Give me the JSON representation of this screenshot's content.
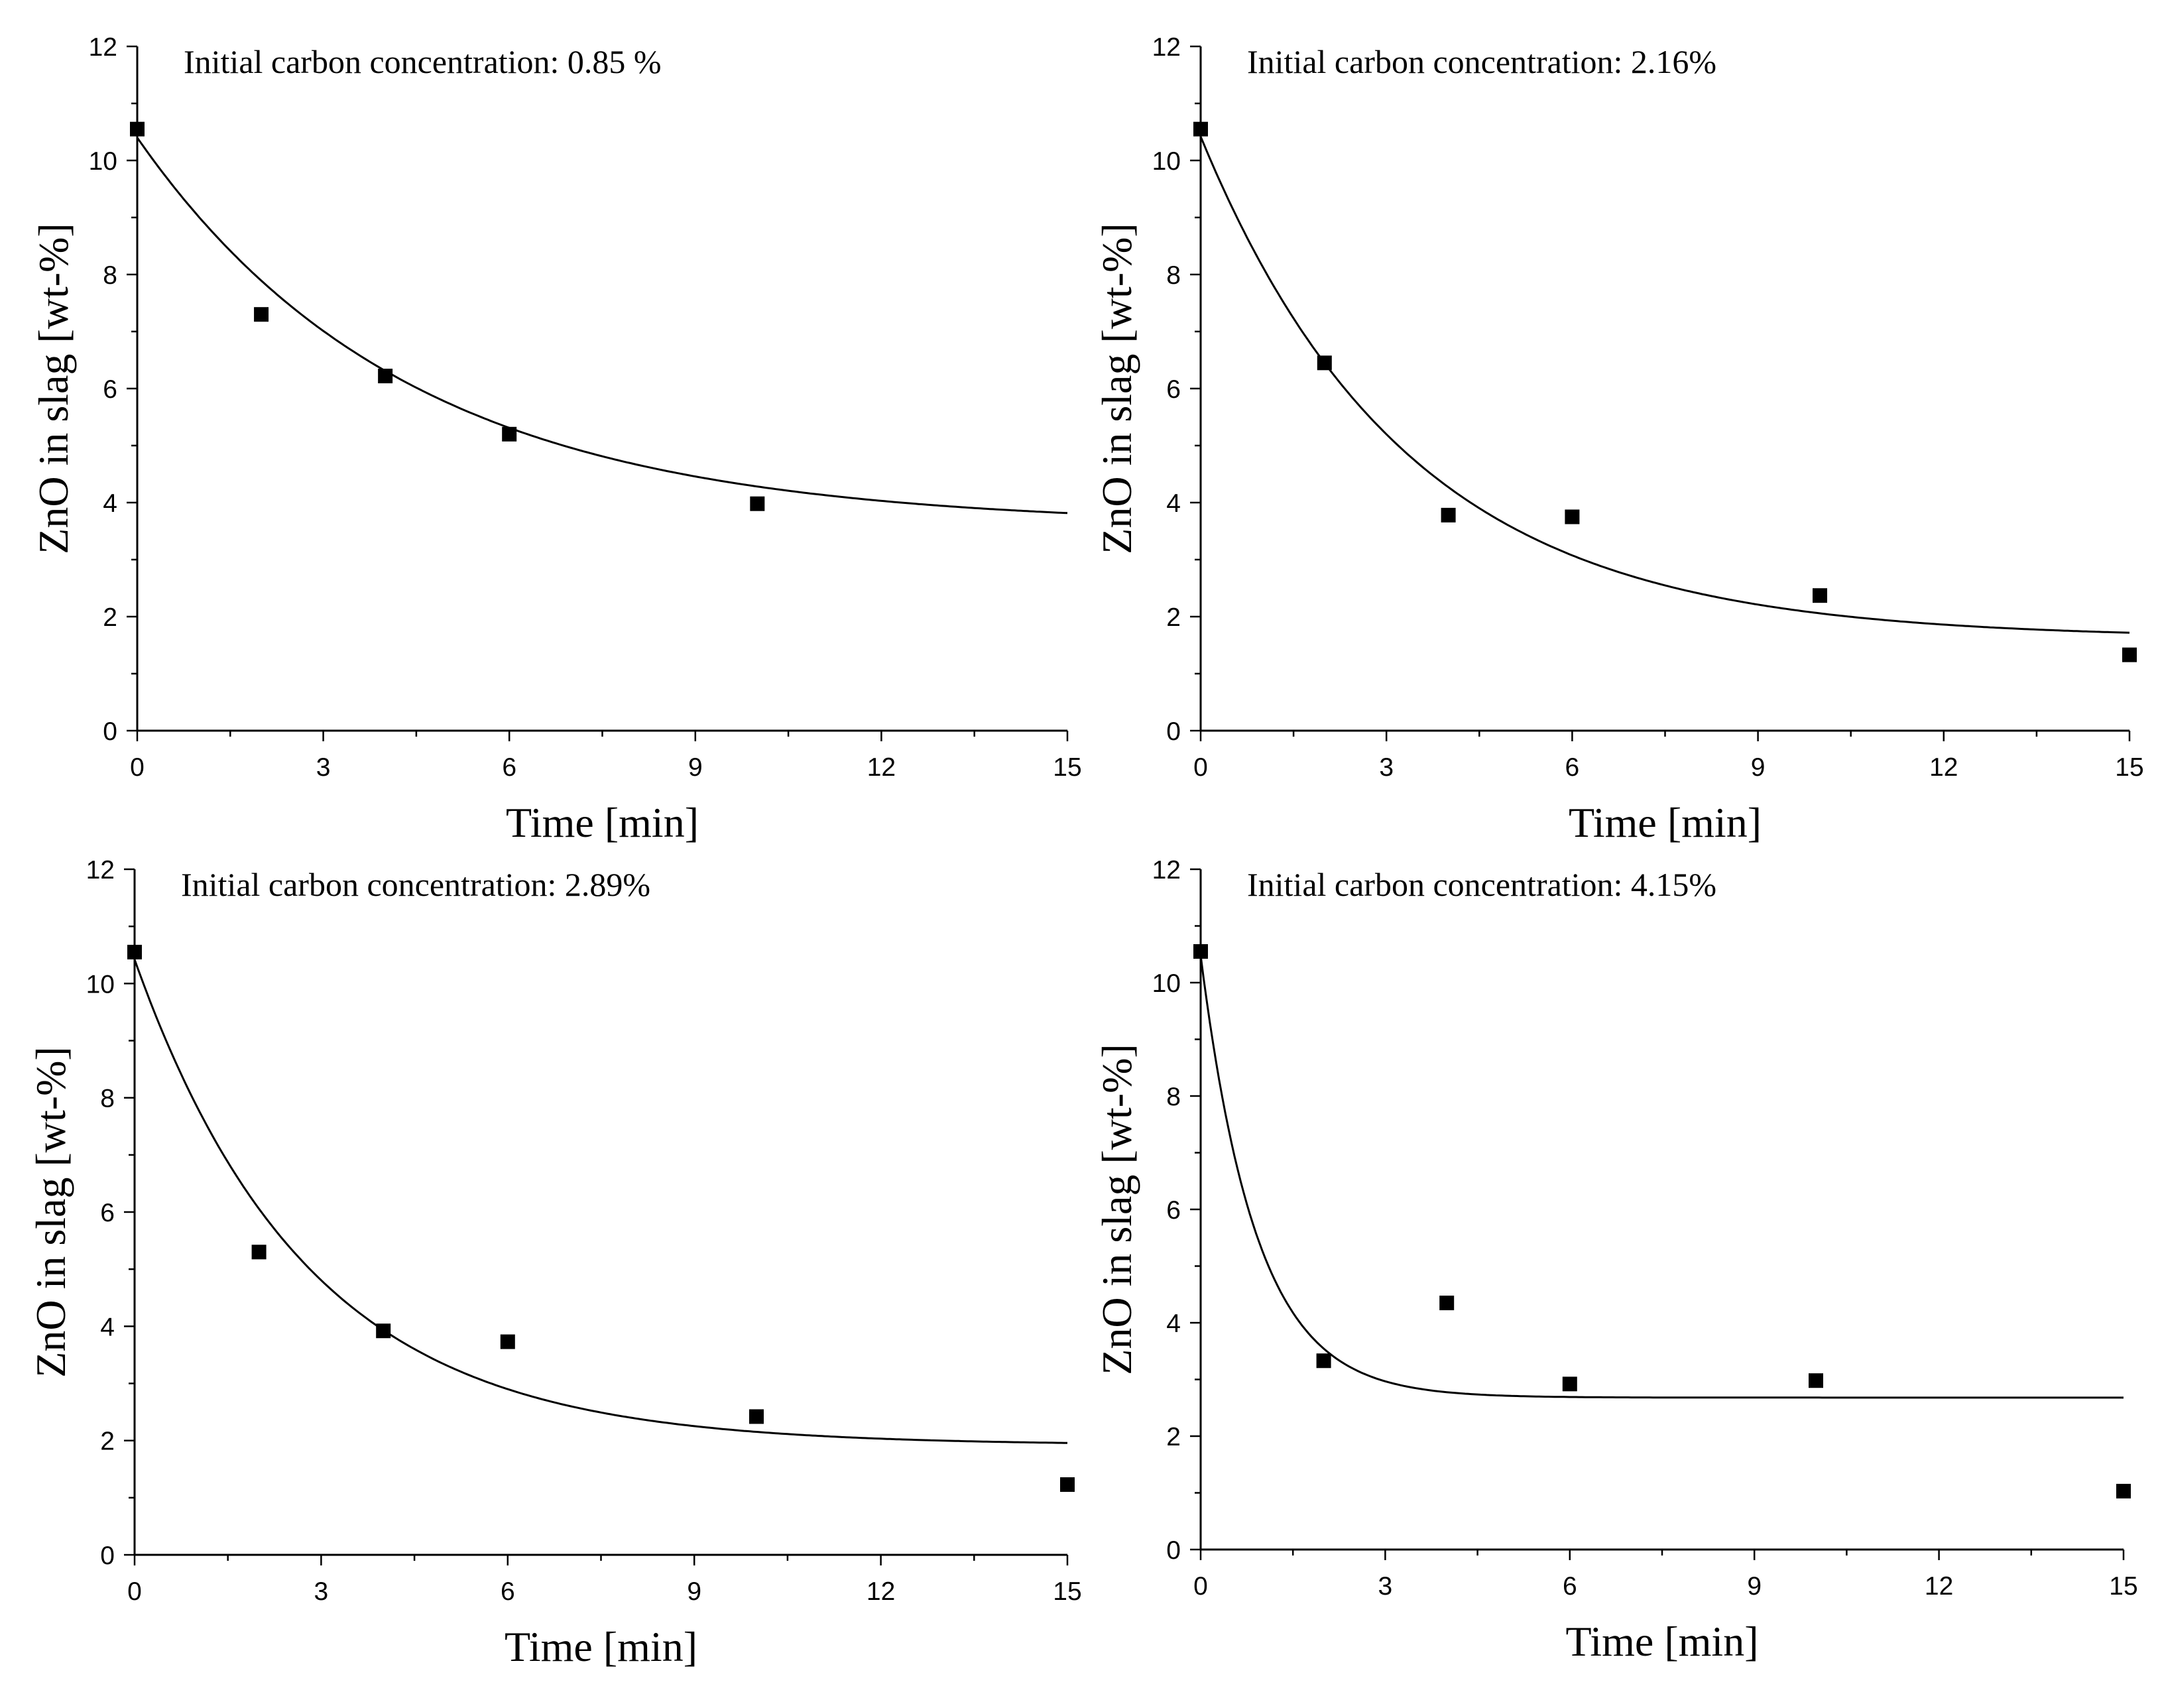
{
  "chart_data": [
    {
      "type": "scatter",
      "title": "Initial carbon concentration: 0.85 %",
      "xlabel": "Time [min]",
      "ylabel": "ZnO in slag [wt-%]",
      "xlim": [
        0,
        15
      ],
      "ylim": [
        0,
        12
      ],
      "xticks": [
        "0",
        "3",
        "6",
        "9",
        "12",
        "15"
      ],
      "yticks": [
        "0",
        "2",
        "4",
        "6",
        "8",
        "10",
        "12"
      ],
      "points": {
        "x": [
          0,
          2,
          4,
          6,
          10
        ],
        "y": [
          10.55,
          7.3,
          6.22,
          5.2,
          3.98
        ]
      },
      "fit": {
        "c": 3.6,
        "a": 6.8,
        "k": 0.23
      }
    },
    {
      "type": "scatter",
      "title": "Initial carbon concentration: 2.16%",
      "xlabel": "Time [min]",
      "ylabel": "ZnO in slag [wt-%]",
      "xlim": [
        0,
        15
      ],
      "ylim": [
        0,
        12
      ],
      "xticks": [
        "0",
        "3",
        "6",
        "9",
        "12",
        "15"
      ],
      "yticks": [
        "0",
        "2",
        "4",
        "6",
        "8",
        "10",
        "12"
      ],
      "points": {
        "x": [
          0,
          2,
          4,
          6,
          10,
          15
        ],
        "y": [
          10.55,
          6.45,
          3.78,
          3.75,
          2.37,
          1.33
        ]
      },
      "fit": {
        "c": 1.62,
        "a": 8.8,
        "k": 0.3
      }
    },
    {
      "type": "scatter",
      "title": "Initial carbon concentration: 2.89%",
      "xlabel": "Time [min]",
      "ylabel": "ZnO in slag [wt-%]",
      "xlim": [
        0,
        15
      ],
      "ylim": [
        0,
        12
      ],
      "xticks": [
        "0",
        "3",
        "6",
        "9",
        "12",
        "15"
      ],
      "yticks": [
        "0",
        "2",
        "4",
        "6",
        "8",
        "10",
        "12"
      ],
      "points": {
        "x": [
          0,
          2,
          4,
          6,
          10,
          15
        ],
        "y": [
          10.55,
          5.3,
          3.92,
          3.73,
          2.42,
          1.23
        ]
      },
      "fit": {
        "c": 1.92,
        "a": 8.5,
        "k": 0.36
      }
    },
    {
      "type": "scatter",
      "title": "Initial carbon concentration: 4.15%",
      "xlabel": "Time [min]",
      "ylabel": "ZnO in slag [wt-%]",
      "xlim": [
        0,
        15
      ],
      "ylim": [
        0,
        12
      ],
      "xticks": [
        "0",
        "3",
        "6",
        "9",
        "12",
        "15"
      ],
      "yticks": [
        "0",
        "2",
        "4",
        "6",
        "8",
        "10",
        "12"
      ],
      "points": {
        "x": [
          0,
          2,
          4,
          6,
          10,
          15
        ],
        "y": [
          10.55,
          3.33,
          4.35,
          2.92,
          2.98,
          1.03
        ]
      },
      "fit": {
        "c": 2.68,
        "a": 7.8,
        "k": 1.1
      }
    }
  ]
}
